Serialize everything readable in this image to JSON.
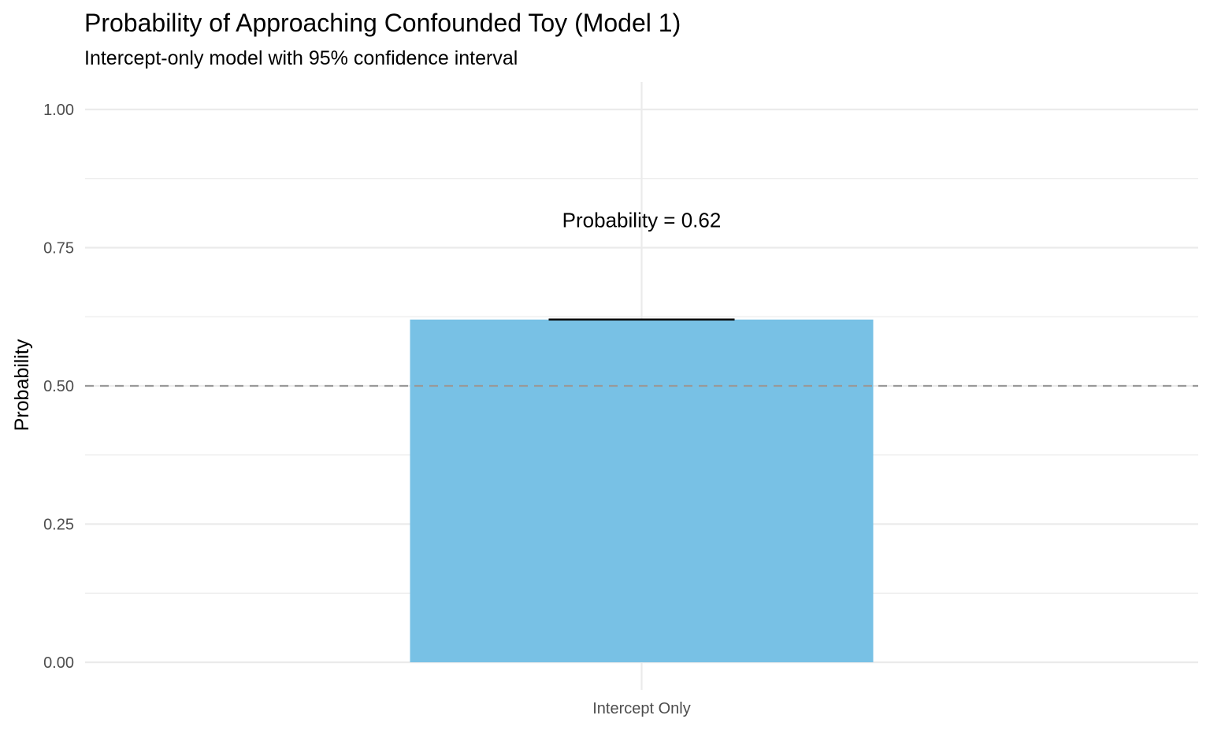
{
  "chart_data": {
    "type": "bar",
    "title": "Probability of Approaching Confounded Toy (Model 1)",
    "subtitle": "Intercept-only model with 95% confidence interval",
    "xlabel": "",
    "ylabel": "Probability",
    "categories": [
      "Intercept Only"
    ],
    "values": [
      0.62
    ],
    "error_bars": [
      {
        "lower": 0.62,
        "upper": 0.62
      }
    ],
    "ylim": [
      0,
      1.05
    ],
    "y_ticks": [
      0,
      0.25,
      0.5,
      0.75,
      1.0
    ],
    "y_tick_labels": [
      "0.00",
      "0.25",
      "0.50",
      "0.75",
      "1.00"
    ],
    "reference_line": {
      "y": 0.5,
      "style": "dashed"
    },
    "annotation": {
      "text": "Probability = 0.62",
      "y": 0.8
    },
    "grid": true,
    "legend": "none",
    "colors": {
      "bar": "#78c1e5",
      "grid": "#ebebeb",
      "reference_line": "#999999",
      "error_bar": "#000000"
    }
  }
}
